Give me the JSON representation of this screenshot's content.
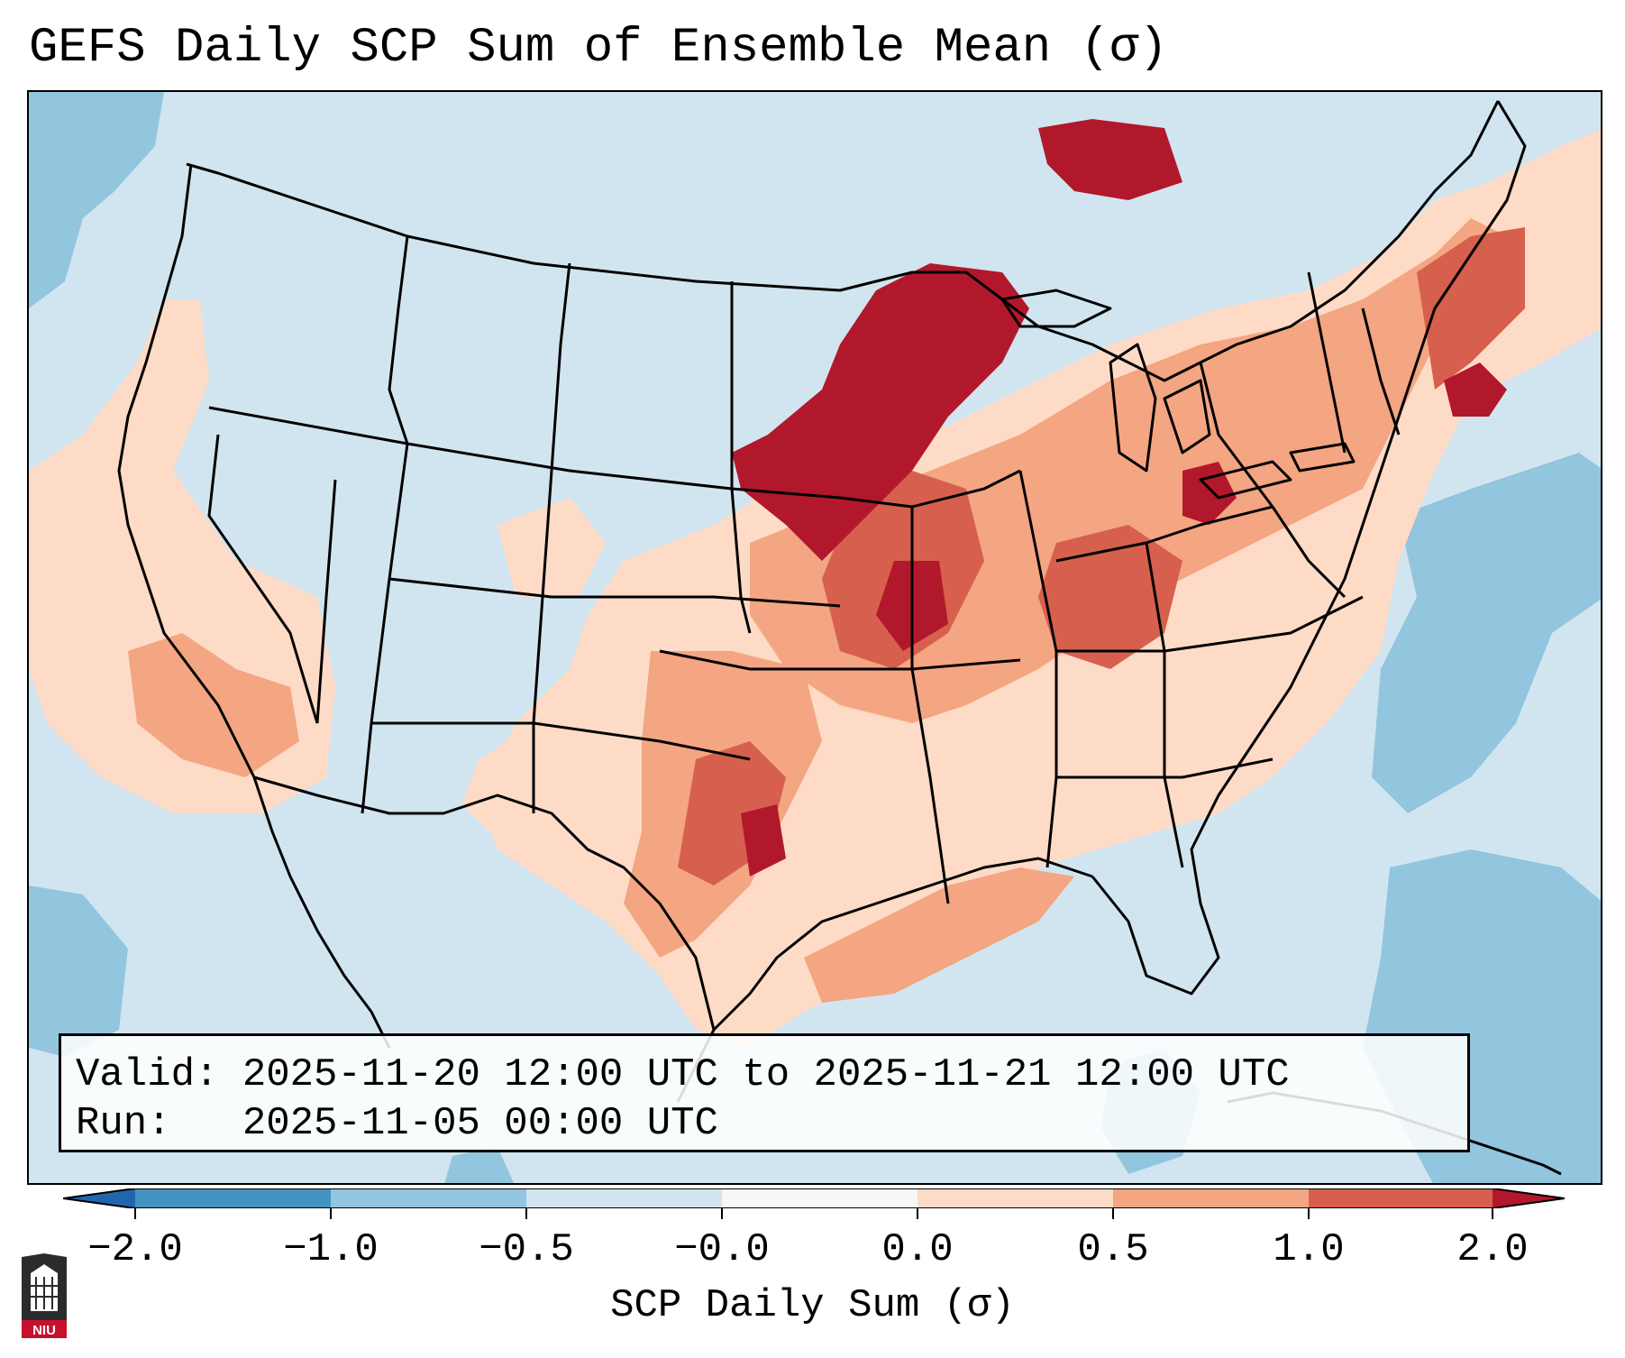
{
  "title": "GEFS Daily SCP Sum of Ensemble Mean (σ)",
  "info": {
    "valid_label": "Valid:",
    "valid_value": "2025-11-20 12:00 UTC to 2025-11-21 12:00 UTC",
    "run_label": "Run:",
    "run_value": "2025-11-05 00:00 UTC"
  },
  "colorbar": {
    "label": "SCP Daily Sum (σ)",
    "tick_labels": [
      "−2.0",
      "−1.0",
      "−0.5",
      "−0.0",
      "0.0",
      "0.5",
      "1.0",
      "2.0"
    ],
    "bin_colors": [
      "#4393c3",
      "#92c5de",
      "#d1e5f0",
      "#f7f7f7",
      "#fddbc7",
      "#f4a582",
      "#d6604d",
      "#b2182b"
    ],
    "extend_low_color": "#2166ac",
    "extend_high_color": "#b2182b"
  },
  "map": {
    "background_color": "#d1e5f0",
    "region": "Continental United States"
  },
  "logo": {
    "text": "NIU"
  }
}
